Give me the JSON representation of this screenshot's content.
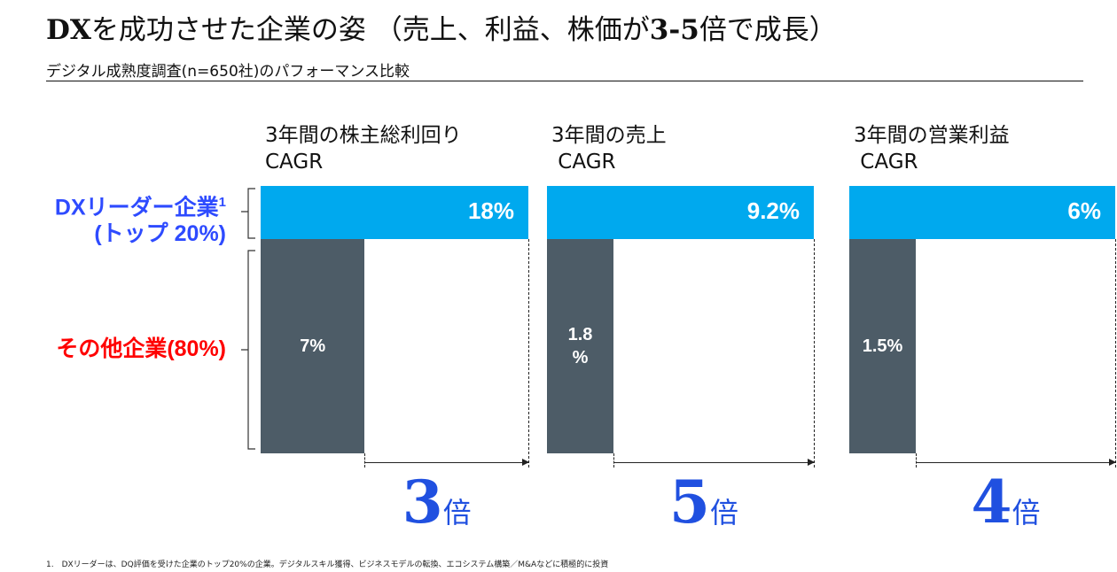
{
  "title": {
    "prefix": "DX",
    "main": "を成功させた企業の姿 （売上、利益、株価が",
    "range": "3-5",
    "suffix": "倍で成長）"
  },
  "subtitle": "デジタル成熟度調査(n=650社)のパフォーマンス比較",
  "colors": {
    "leader": "#00A9EE",
    "other": "#4D5C67",
    "leader_label": "#2E4BFF",
    "other_label": "#FF0000",
    "multiplier": "#2050E0"
  },
  "chart_data": {
    "type": "bar",
    "row_labels": {
      "leader": "DXリーダー企業",
      "leader_sup": "1",
      "leader_sub": "(トップ 20%)",
      "other": "その他企業(80%)"
    },
    "panels": [
      {
        "title": "3年間の株主総利回り\nCAGR",
        "leader": 18,
        "other": 7,
        "leader_label": "18%",
        "other_label": "7%",
        "multiplier": "3",
        "unit": "倍"
      },
      {
        "title": "3年間の売上\n CAGR",
        "leader": 9.2,
        "other": 1.8,
        "leader_label": "9.2%",
        "other_label": "1.8\n%",
        "multiplier": "5",
        "unit": "倍"
      },
      {
        "title": "3年間の営業利益\n CAGR",
        "leader": 6,
        "other": 1.5,
        "leader_label": "6%",
        "other_label": "1.5%",
        "multiplier": "4",
        "unit": "倍"
      }
    ]
  },
  "footnote": "1.　DXリーダーは、DQ評価を受けた企業のトップ20%の企業。デジタルスキル獲得、ビジネスモデルの転換、エコシステム構築／M&Aなどに積極的に投資"
}
